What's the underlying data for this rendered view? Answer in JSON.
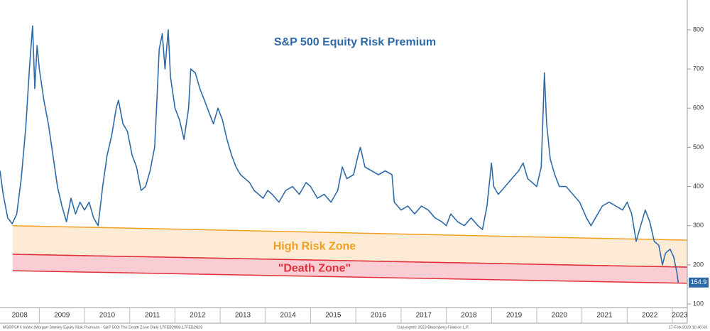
{
  "chart_data": {
    "type": "line",
    "title": "S&P 500 Equity Risk Premium",
    "xlim": [
      2008.13,
      2023.33
    ],
    "xticks": [
      2008,
      2009,
      2010,
      2011,
      2012,
      2013,
      2014,
      2015,
      2016,
      2017,
      2018,
      2019,
      2020,
      2021,
      2022,
      2023
    ],
    "ylim": [
      91,
      876
    ],
    "yticks": [
      100,
      200,
      300,
      400,
      500,
      600,
      700,
      800
    ],
    "grid": false,
    "series": [
      {
        "color": "#2f6aa8",
        "x": [
          2008.13,
          2008.2,
          2008.3,
          2008.4,
          2008.5,
          2008.6,
          2008.7,
          2008.78,
          2008.85,
          2008.9,
          2008.95,
          2009.0,
          2009.1,
          2009.2,
          2009.3,
          2009.4,
          2009.5,
          2009.6,
          2009.7,
          2009.8,
          2009.9,
          2010.0,
          2010.1,
          2010.2,
          2010.3,
          2010.4,
          2010.5,
          2010.6,
          2010.7,
          2010.75,
          2010.85,
          2010.95,
          2011.05,
          2011.15,
          2011.25,
          2011.35,
          2011.45,
          2011.55,
          2011.6,
          2011.65,
          2011.72,
          2011.78,
          2011.85,
          2011.9,
          2012.0,
          2012.1,
          2012.2,
          2012.3,
          2012.35,
          2012.45,
          2012.55,
          2012.65,
          2012.75,
          2012.85,
          2012.95,
          2013.05,
          2013.15,
          2013.25,
          2013.35,
          2013.45,
          2013.55,
          2013.65,
          2013.75,
          2013.85,
          2013.95,
          2014.05,
          2014.15,
          2014.3,
          2014.45,
          2014.6,
          2014.75,
          2014.9,
          2015.0,
          2015.15,
          2015.3,
          2015.45,
          2015.6,
          2015.7,
          2015.8,
          2015.95,
          2016.05,
          2016.1,
          2016.2,
          2016.35,
          2016.5,
          2016.65,
          2016.8,
          2016.85,
          2017.0,
          2017.15,
          2017.3,
          2017.45,
          2017.6,
          2017.75,
          2017.9,
          2018.0,
          2018.1,
          2018.25,
          2018.4,
          2018.55,
          2018.7,
          2018.8,
          2018.9,
          2019.0,
          2019.05,
          2019.15,
          2019.3,
          2019.45,
          2019.6,
          2019.7,
          2019.8,
          2019.9,
          2020.0,
          2020.1,
          2020.17,
          2020.22,
          2020.3,
          2020.4,
          2020.5,
          2020.65,
          2020.8,
          2020.95,
          2021.1,
          2021.2,
          2021.3,
          2021.45,
          2021.6,
          2021.75,
          2021.9,
          2022.0,
          2022.1,
          2022.2,
          2022.3,
          2022.4,
          2022.5,
          2022.6,
          2022.7,
          2022.78,
          2022.85,
          2022.95,
          2023.03,
          2023.1,
          2023.13
        ],
        "values": [
          440,
          380,
          320,
          305,
          330,
          420,
          550,
          700,
          810,
          650,
          760,
          700,
          620,
          560,
          480,
          400,
          350,
          310,
          370,
          330,
          360,
          340,
          360,
          320,
          300,
          400,
          480,
          530,
          600,
          620,
          560,
          540,
          480,
          450,
          390,
          400,
          440,
          500,
          620,
          750,
          790,
          700,
          800,
          680,
          600,
          570,
          520,
          600,
          700,
          690,
          650,
          620,
          590,
          560,
          600,
          570,
          520,
          480,
          450,
          430,
          420,
          410,
          390,
          380,
          370,
          390,
          380,
          360,
          390,
          400,
          380,
          410,
          400,
          370,
          380,
          360,
          390,
          450,
          420,
          430,
          480,
          500,
          450,
          440,
          430,
          440,
          430,
          360,
          340,
          350,
          330,
          350,
          340,
          320,
          310,
          300,
          330,
          310,
          300,
          320,
          300,
          290,
          350,
          460,
          400,
          380,
          400,
          420,
          440,
          460,
          420,
          410,
          400,
          450,
          690,
          560,
          470,
          430,
          400,
          400,
          380,
          360,
          320,
          300,
          320,
          350,
          360,
          350,
          340,
          360,
          330,
          260,
          300,
          340,
          310,
          260,
          250,
          200,
          230,
          240,
          220,
          180,
          154.9
        ]
      }
    ],
    "zones": [
      {
        "name": "High Risk Zone",
        "color": "#f0a020",
        "fill": "#fdebd6",
        "line_colors": [
          "#f0a020",
          "#e0303a"
        ],
        "x": [
          2008.41,
          2023.33
        ],
        "upper": [
          300,
          263
        ],
        "lower": [
          227,
          194
        ]
      },
      {
        "name": "\"Death Zone\"",
        "color": "#e0303a",
        "fill": "#f9cdd3",
        "line_colors": [
          "#e0303a",
          "#e0303a"
        ],
        "x": [
          2008.41,
          2023.33
        ],
        "upper": [
          227,
          194
        ],
        "lower": [
          185,
          153
        ]
      }
    ],
    "footer": [
      "MSRPSPX Index (Morgan Stanley Equity Risk Premium - S&P 500) The Death Zone  Daily 17FEB2008-17FEB2023",
      "Copyright© 2023 Bloomberg Finance L.P.",
      "17-Feb-2023 10:40:43"
    ]
  }
}
